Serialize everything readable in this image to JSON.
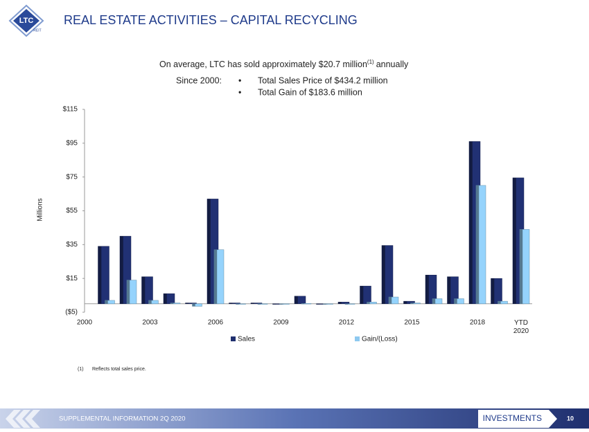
{
  "header": {
    "title": "REAL ESTATE ACTIVITIES – CAPITAL RECYCLING",
    "logo": "LTC",
    "logo_sub": "REIT"
  },
  "summary": {
    "line1": "On average, LTC has sold approximately $20.7 million",
    "line1_sup": "(1)",
    "line1_end": "annually",
    "since_label": "Since 2000:",
    "bullets": [
      "Total Sales Price of $434.2 million",
      "Total Gain of $183.6 million"
    ]
  },
  "chart_data": {
    "type": "bar",
    "y_label": "Millions",
    "categories": [
      "2000",
      null,
      null,
      "2003",
      null,
      null,
      "2006",
      null,
      null,
      "2009",
      null,
      null,
      "2012",
      null,
      null,
      "2015",
      null,
      null,
      "2018",
      null,
      "YTD 2020"
    ],
    "series": [
      {
        "name": "Sales",
        "color": "#1f2f6e",
        "values": [
          null,
          34,
          40,
          16,
          6,
          0.5,
          62,
          0.5,
          0.5,
          0,
          4.5,
          0,
          1,
          10.5,
          34.5,
          1.5,
          17,
          16,
          96,
          15,
          74.5
        ]
      },
      {
        "name": "Gain/(Loss)",
        "color": "#8ec9f0",
        "values": [
          null,
          2,
          14,
          2,
          0.5,
          -1.5,
          32,
          0,
          0,
          0,
          0.2,
          0,
          0,
          1,
          4,
          0.5,
          3,
          3,
          70,
          1.5,
          44
        ]
      }
    ],
    "ylim": [
      -5,
      115
    ],
    "yticks": [
      {
        "value": -5,
        "label": "($5)"
      },
      {
        "value": 15,
        "label": "$15"
      },
      {
        "value": 35,
        "label": "$35"
      },
      {
        "value": 55,
        "label": "$55"
      },
      {
        "value": 75,
        "label": "$75"
      },
      {
        "value": 95,
        "label": "$95"
      },
      {
        "value": 115,
        "label": "$115"
      }
    ],
    "legend": "bottom"
  },
  "footnote": {
    "mark": "(1)",
    "text": "Reflects total sales price."
  },
  "footer": {
    "left": "SUPPLEMENTAL INFORMATION  2Q 2020",
    "section": "INVESTMENTS",
    "page": "10"
  }
}
